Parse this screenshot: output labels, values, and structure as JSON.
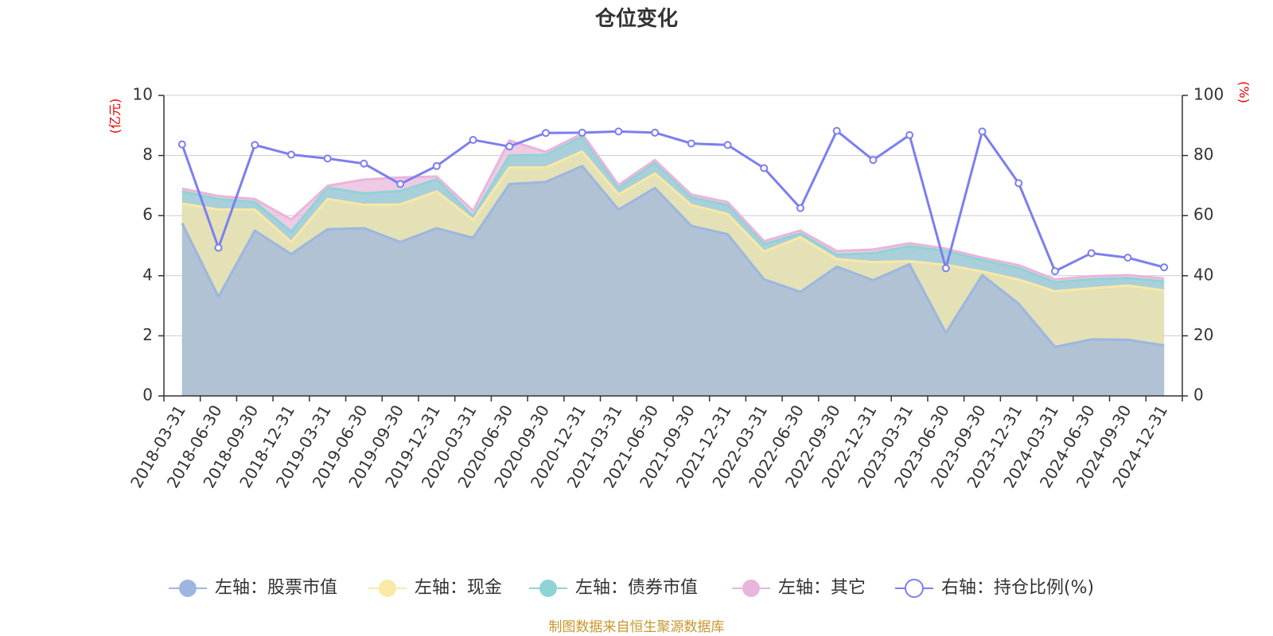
{
  "colors": {
    "stock": "#9db6e0",
    "cash": "#fae8a6",
    "bond": "#8fd3d6",
    "other": "#e8b6da",
    "ratio": "#7b7ff0",
    "unit": "#e60000",
    "source": "#c9962e",
    "axis": "#333333",
    "grid": "#cccccc"
  },
  "chart_data": {
    "type": "area",
    "title": "仓位变化",
    "left_unit": "(亿元)",
    "right_unit": "(%)",
    "y_left": {
      "min": 0,
      "max": 10,
      "ticks": [
        0,
        2,
        4,
        6,
        8,
        10
      ]
    },
    "y_right": {
      "min": 0,
      "max": 100,
      "ticks": [
        0,
        20,
        40,
        60,
        80,
        100
      ]
    },
    "categories": [
      "2018-03-31",
      "2018-06-30",
      "2018-09-30",
      "2018-12-31",
      "2019-03-31",
      "2019-06-30",
      "2019-09-30",
      "2019-12-31",
      "2020-03-31",
      "2020-06-30",
      "2020-09-30",
      "2020-12-31",
      "2021-03-31",
      "2021-06-30",
      "2021-09-30",
      "2021-12-31",
      "2022-03-31",
      "2022-06-30",
      "2022-09-30",
      "2022-12-31",
      "2023-03-31",
      "2023-06-30",
      "2023-09-30",
      "2023-12-31",
      "2024-03-31",
      "2024-06-30",
      "2024-09-30",
      "2024-12-31"
    ],
    "series": [
      {
        "name": "左轴：股票市值",
        "key": "stock",
        "axis": "left",
        "stacked": true,
        "values": [
          5.75,
          3.3,
          5.5,
          4.72,
          5.55,
          5.58,
          5.12,
          5.58,
          5.26,
          7.05,
          7.12,
          7.65,
          6.2,
          6.92,
          5.66,
          5.38,
          3.88,
          3.46,
          4.3,
          3.85,
          4.38,
          2.1,
          4.02,
          3.07,
          1.63,
          1.88,
          1.87,
          1.68
        ]
      },
      {
        "name": "左轴：现金",
        "key": "cash",
        "axis": "left",
        "stacked": true,
        "values": [
          0.65,
          2.9,
          0.7,
          0.4,
          1.0,
          0.78,
          1.25,
          1.22,
          0.6,
          0.55,
          0.48,
          0.48,
          0.5,
          0.48,
          0.69,
          0.67,
          0.92,
          1.82,
          0.25,
          0.6,
          0.1,
          2.26,
          0.12,
          0.8,
          1.85,
          1.7,
          1.8,
          1.83
        ]
      },
      {
        "name": "左轴：债券市值",
        "key": "bond",
        "axis": "left",
        "stacked": true,
        "values": [
          0.4,
          0.35,
          0.25,
          0.35,
          0.38,
          0.38,
          0.45,
          0.4,
          0.12,
          0.4,
          0.42,
          0.5,
          0.22,
          0.35,
          0.25,
          0.3,
          0.25,
          0.12,
          0.15,
          0.3,
          0.5,
          0.46,
          0.38,
          0.38,
          0.3,
          0.3,
          0.25,
          0.3
        ]
      },
      {
        "name": "左轴：其它",
        "key": "other",
        "axis": "left",
        "stacked": true,
        "values": [
          0.1,
          0.1,
          0.1,
          0.4,
          0.06,
          0.46,
          0.45,
          0.1,
          0.18,
          0.5,
          0.1,
          0.1,
          0.1,
          0.1,
          0.1,
          0.1,
          0.1,
          0.1,
          0.12,
          0.12,
          0.1,
          0.08,
          0.08,
          0.1,
          0.1,
          0.1,
          0.1,
          0.1
        ]
      },
      {
        "name": "右轴：持仓比例(%)",
        "key": "ratio",
        "axis": "right",
        "stacked": false,
        "values": [
          83.7,
          49.3,
          83.5,
          80.3,
          79.0,
          77.3,
          70.5,
          76.5,
          85.2,
          83.0,
          87.5,
          87.6,
          88.0,
          87.6,
          84.0,
          83.5,
          75.8,
          62.5,
          88.2,
          78.5,
          86.8,
          42.5,
          88.0,
          70.8,
          41.5,
          47.5,
          46.0,
          42.8
        ]
      }
    ],
    "legend_position": "bottom",
    "grid": true
  },
  "footer": {
    "source": "制图数据来自恒生聚源数据库"
  }
}
